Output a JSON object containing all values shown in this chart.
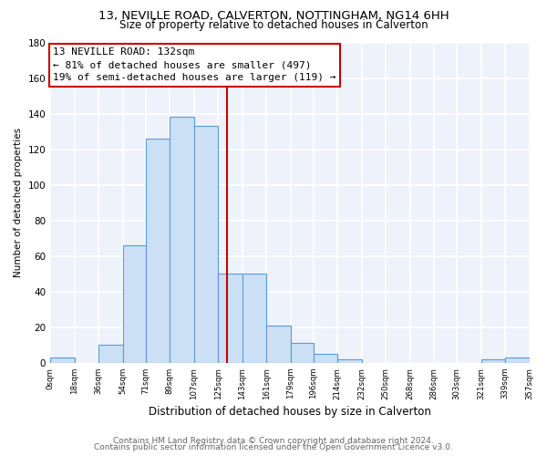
{
  "title_line1": "13, NEVILLE ROAD, CALVERTON, NOTTINGHAM, NG14 6HH",
  "title_line2": "Size of property relative to detached houses in Calverton",
  "xlabel": "Distribution of detached houses by size in Calverton",
  "ylabel": "Number of detached properties",
  "bar_edges": [
    0,
    18,
    36,
    54,
    71,
    89,
    107,
    125,
    143,
    161,
    179,
    196,
    214,
    232,
    250,
    268,
    286,
    303,
    321,
    339,
    357
  ],
  "bar_heights": [
    3,
    0,
    10,
    66,
    126,
    138,
    133,
    50,
    50,
    21,
    11,
    5,
    2,
    0,
    0,
    0,
    0,
    0,
    2,
    3
  ],
  "bar_color": "#cce0f5",
  "bar_edge_color": "#5b9bd5",
  "reference_line_x": 132,
  "reference_line_color": "#cc0000",
  "annotation_title": "13 NEVILLE ROAD: 132sqm",
  "annotation_line1": "← 81% of detached houses are smaller (497)",
  "annotation_line2": "19% of semi-detached houses are larger (119) →",
  "annotation_box_edge_color": "#cc0000",
  "annotation_box_face_color": "#ffffff",
  "tick_labels": [
    "0sqm",
    "18sqm",
    "36sqm",
    "54sqm",
    "71sqm",
    "89sqm",
    "107sqm",
    "125sqm",
    "143sqm",
    "161sqm",
    "179sqm",
    "196sqm",
    "214sqm",
    "232sqm",
    "250sqm",
    "268sqm",
    "286sqm",
    "303sqm",
    "321sqm",
    "339sqm",
    "357sqm"
  ],
  "ylim": [
    0,
    180
  ],
  "yticks": [
    0,
    20,
    40,
    60,
    80,
    100,
    120,
    140,
    160,
    180
  ],
  "footer_line1": "Contains HM Land Registry data © Crown copyright and database right 2024.",
  "footer_line2": "Contains public sector information licensed under the Open Government Licence v3.0.",
  "plot_bg_color": "#eef2fa",
  "fig_bg_color": "#ffffff",
  "grid_color": "#ffffff",
  "title1_fontsize": 9.5,
  "title2_fontsize": 8.5,
  "xlabel_fontsize": 8.5,
  "ylabel_fontsize": 7.5,
  "tick_fontsize": 6.2,
  "ytick_fontsize": 7.5,
  "footer_fontsize": 6.5,
  "annotation_fontsize": 8.0
}
